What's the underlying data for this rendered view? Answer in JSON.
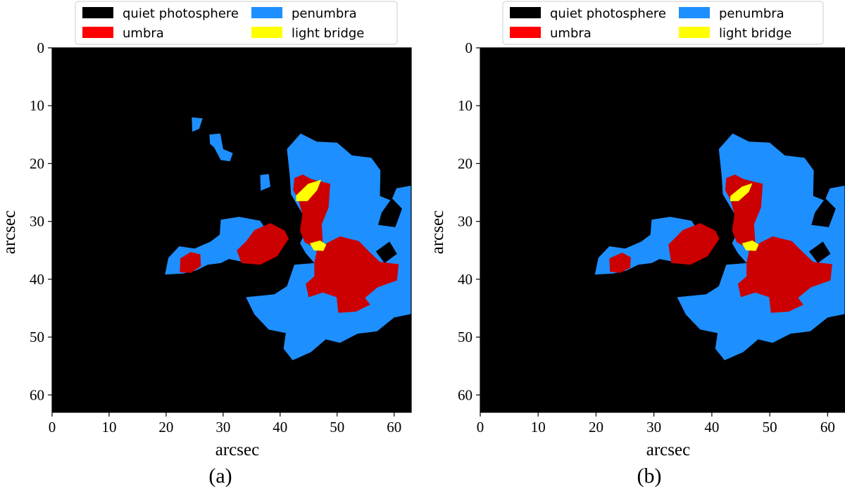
{
  "colors": {
    "quiet": "#000000",
    "umbra": "#ff0000",
    "umbra_fill": "#cc0000",
    "penumbra": "#1e8fff",
    "light_bridge": "#ffff00"
  },
  "chart_data": [
    {
      "type": "heatmap",
      "panel_label": "(a)",
      "xlabel": "arcsec",
      "ylabel": "arcsec",
      "xlim": [
        0,
        63
      ],
      "ylim": [
        63,
        0
      ],
      "xticks": [
        "0",
        "10",
        "20",
        "30",
        "40",
        "50",
        "60"
      ],
      "yticks": [
        "0",
        "10",
        "20",
        "30",
        "40",
        "50",
        "60"
      ],
      "legend_position": "top",
      "legend": [
        {
          "label": "quiet photosphere",
          "color": "#000000"
        },
        {
          "label": "penumbra",
          "color": "#1e8fff"
        },
        {
          "label": "umbra",
          "color": "#ff0000"
        },
        {
          "label": "light bridge",
          "color": "#ffff00"
        }
      ],
      "regions": {
        "penumbra": [
          [
            [
              24.5,
              12
            ],
            [
              26.4,
              12.2
            ],
            [
              25.8,
              14
            ],
            [
              24.6,
              14.5
            ]
          ],
          [
            [
              27.6,
              15
            ],
            [
              29.5,
              14.8
            ],
            [
              30,
              17.5
            ],
            [
              31.7,
              18.2
            ],
            [
              31.2,
              19.6
            ],
            [
              29.6,
              19.4
            ],
            [
              28.4,
              17.2
            ],
            [
              27.7,
              16.6
            ]
          ],
          [
            [
              36.5,
              22
            ],
            [
              38,
              21.8
            ],
            [
              38.3,
              24
            ],
            [
              36.6,
              24.7
            ]
          ],
          [
            [
              41.2,
              17.5
            ],
            [
              43.6,
              14.8
            ],
            [
              46.4,
              16.2
            ],
            [
              50,
              16.4
            ],
            [
              52.6,
              18.6
            ],
            [
              56,
              19
            ],
            [
              57.6,
              21.2
            ],
            [
              57.5,
              25.6
            ],
            [
              59.5,
              26.4
            ],
            [
              60.4,
              24.3
            ],
            [
              63,
              23.8
            ],
            [
              63,
              46
            ],
            [
              60,
              46.6
            ],
            [
              57,
              49
            ],
            [
              53.6,
              49.4
            ],
            [
              50.5,
              51
            ],
            [
              48,
              50.4
            ],
            [
              45.4,
              52.6
            ],
            [
              42.2,
              54
            ],
            [
              40.6,
              52
            ],
            [
              41,
              49.3
            ],
            [
              38,
              48.7
            ],
            [
              35.5,
              46.1
            ],
            [
              34,
              43.1
            ],
            [
              39,
              42.6
            ],
            [
              41.2,
              41.2
            ],
            [
              42.5,
              37.5
            ],
            [
              46,
              37.2
            ],
            [
              44.5,
              35.5
            ],
            [
              43.5,
              33.8
            ],
            [
              45,
              30.5
            ],
            [
              43.2,
              27.5
            ],
            [
              41.9,
              25.3
            ],
            [
              41.7,
              22.2
            ]
          ],
          [
            [
              29.6,
              29.7
            ],
            [
              32.8,
              29.2
            ],
            [
              36.5,
              29.9
            ],
            [
              38.5,
              33
            ],
            [
              37.5,
              36.4
            ],
            [
              33.5,
              37
            ],
            [
              31,
              36.5
            ],
            [
              29.6,
              37.2
            ],
            [
              27.3,
              37.5
            ],
            [
              25.2,
              38.5
            ],
            [
              23,
              39
            ],
            [
              19.8,
              39.2
            ],
            [
              20.4,
              36.3
            ],
            [
              22.3,
              34.3
            ],
            [
              25,
              34.7
            ],
            [
              27.8,
              33.5
            ],
            [
              29.4,
              32.3
            ]
          ]
        ],
        "quiet_cutouts": [
          [
            [
              57.8,
              28.5
            ],
            [
              59.6,
              26
            ],
            [
              61.4,
              27.8
            ],
            [
              60.2,
              31
            ],
            [
              57.2,
              30.6
            ]
          ],
          [
            [
              56.8,
              35.2
            ],
            [
              59.2,
              33.5
            ],
            [
              60.5,
              35.6
            ],
            [
              58.3,
              37.2
            ]
          ]
        ],
        "umbra": [
          [
            [
              42.5,
              22.5
            ],
            [
              44,
              21.9
            ],
            [
              45.5,
              22.7
            ],
            [
              48.8,
              23.5
            ],
            [
              48.5,
              27.6
            ],
            [
              47.3,
              30.5
            ],
            [
              47.5,
              33.7
            ],
            [
              46.1,
              34.6
            ],
            [
              44.3,
              33.6
            ],
            [
              43.5,
              31.6
            ],
            [
              43.9,
              28.8
            ],
            [
              43.2,
              26.2
            ],
            [
              42.3,
              24.6
            ]
          ],
          [
            [
              46.5,
              34.8
            ],
            [
              48.5,
              33.6
            ],
            [
              50.5,
              32.6
            ],
            [
              53.8,
              33.4
            ],
            [
              55.7,
              35.3
            ],
            [
              57.5,
              37
            ],
            [
              60.8,
              37.4
            ],
            [
              60.5,
              40.2
            ],
            [
              57.1,
              41.4
            ],
            [
              54.9,
              43.2
            ],
            [
              55.8,
              44.4
            ],
            [
              53.3,
              45.6
            ],
            [
              50.2,
              45.8
            ],
            [
              49.9,
              43.1
            ],
            [
              47.5,
              42.3
            ],
            [
              45,
              43.1
            ],
            [
              44.5,
              40.8
            ],
            [
              46,
              39.5
            ],
            [
              46,
              37.1
            ]
          ],
          [
            [
              34,
              33.5
            ],
            [
              35.5,
              31.5
            ],
            [
              38.3,
              30.3
            ],
            [
              40.8,
              31.6
            ],
            [
              41.5,
              33
            ],
            [
              39.5,
              36
            ],
            [
              36.5,
              37.5
            ],
            [
              33.2,
              37.2
            ],
            [
              32.4,
              35
            ]
          ],
          [
            [
              22.5,
              36.4
            ],
            [
              24.3,
              35.3
            ],
            [
              26,
              35.7
            ],
            [
              26.1,
              37.7
            ],
            [
              24.4,
              38.9
            ],
            [
              22.4,
              38.8
            ]
          ]
        ],
        "light_bridge": [
          [
            [
              42.8,
              25.5
            ],
            [
              44.9,
              23.5
            ],
            [
              47.2,
              22.8
            ],
            [
              46.5,
              24.6
            ],
            [
              44.8,
              26.5
            ],
            [
              42.8,
              26.5
            ]
          ],
          [
            [
              45.2,
              33.8
            ],
            [
              47,
              33.3
            ],
            [
              48.1,
              34
            ],
            [
              47.6,
              35.1
            ],
            [
              45.9,
              35
            ]
          ]
        ]
      }
    },
    {
      "type": "heatmap",
      "panel_label": "(b)",
      "xlabel": "arcsec",
      "ylabel": "arcsec",
      "xlim": [
        0,
        63
      ],
      "ylim": [
        63,
        0
      ],
      "xticks": [
        "0",
        "10",
        "20",
        "30",
        "40",
        "50",
        "60"
      ],
      "yticks": [
        "0",
        "10",
        "20",
        "30",
        "40",
        "50",
        "60"
      ],
      "legend_position": "top",
      "legend": [
        {
          "label": "quiet photosphere",
          "color": "#000000"
        },
        {
          "label": "penumbra",
          "color": "#1e8fff"
        },
        {
          "label": "umbra",
          "color": "#ff0000"
        },
        {
          "label": "light bridge",
          "color": "#ffff00"
        }
      ],
      "regions": {
        "penumbra": [
          [
            [
              41.2,
              17.5
            ],
            [
              43.6,
              14.8
            ],
            [
              46.4,
              16.2
            ],
            [
              50,
              16.4
            ],
            [
              52.6,
              18.6
            ],
            [
              56,
              19
            ],
            [
              57.6,
              21.2
            ],
            [
              57.5,
              25.6
            ],
            [
              59.5,
              26.4
            ],
            [
              60.4,
              24.3
            ],
            [
              63,
              23.8
            ],
            [
              63,
              46
            ],
            [
              60,
              46.6
            ],
            [
              57,
              49
            ],
            [
              53.6,
              49.4
            ],
            [
              50.5,
              51
            ],
            [
              48,
              50.4
            ],
            [
              45.4,
              52.6
            ],
            [
              42.2,
              54
            ],
            [
              40.6,
              52
            ],
            [
              41,
              49.3
            ],
            [
              38,
              48.7
            ],
            [
              35.5,
              46.1
            ],
            [
              34,
              43.1
            ],
            [
              39,
              42.6
            ],
            [
              41.2,
              41.2
            ],
            [
              42.5,
              37.5
            ],
            [
              46,
              37.2
            ],
            [
              44.5,
              35.5
            ],
            [
              43.5,
              33.8
            ],
            [
              45,
              30.5
            ],
            [
              43.2,
              27.5
            ],
            [
              41.9,
              25.3
            ],
            [
              41.7,
              22.2
            ]
          ],
          [
            [
              29.6,
              29.7
            ],
            [
              32.8,
              29.2
            ],
            [
              36.5,
              29.9
            ],
            [
              38.5,
              33
            ],
            [
              37.5,
              36.4
            ],
            [
              33.5,
              37
            ],
            [
              31,
              36.5
            ],
            [
              29.6,
              37.2
            ],
            [
              27.3,
              37.5
            ],
            [
              25.2,
              38.5
            ],
            [
              23,
              39
            ],
            [
              19.8,
              39.2
            ],
            [
              20.4,
              36.3
            ],
            [
              22.3,
              34.3
            ],
            [
              25,
              34.7
            ],
            [
              27.8,
              33.5
            ],
            [
              29.4,
              32.3
            ]
          ]
        ],
        "quiet_cutouts": [
          [
            [
              57.8,
              28.5
            ],
            [
              59.6,
              26
            ],
            [
              61.4,
              27.8
            ],
            [
              60.2,
              31
            ],
            [
              57.2,
              30.6
            ]
          ],
          [
            [
              56.8,
              35.2
            ],
            [
              59.2,
              33.5
            ],
            [
              60.5,
              35.6
            ],
            [
              58.3,
              37.2
            ]
          ]
        ],
        "umbra": [
          [
            [
              42.5,
              22.5
            ],
            [
              44,
              21.9
            ],
            [
              45.5,
              22.7
            ],
            [
              48.8,
              23.5
            ],
            [
              48.5,
              27.6
            ],
            [
              47.3,
              30.5
            ],
            [
              47.5,
              33.7
            ],
            [
              46.1,
              34.6
            ],
            [
              44.3,
              33.6
            ],
            [
              43.5,
              31.6
            ],
            [
              43.9,
              28.8
            ],
            [
              43.2,
              26.2
            ],
            [
              42.3,
              24.6
            ]
          ],
          [
            [
              46.5,
              34.8
            ],
            [
              48.5,
              33.6
            ],
            [
              50.5,
              32.6
            ],
            [
              53.8,
              33.4
            ],
            [
              55.7,
              35.3
            ],
            [
              57.5,
              37
            ],
            [
              60.8,
              37.4
            ],
            [
              60.5,
              40.2
            ],
            [
              57.1,
              41.4
            ],
            [
              54.9,
              43.2
            ],
            [
              55.8,
              44.4
            ],
            [
              53.3,
              45.6
            ],
            [
              50.2,
              45.8
            ],
            [
              49.9,
              43.1
            ],
            [
              47.5,
              42.3
            ],
            [
              45,
              43.1
            ],
            [
              44.5,
              40.8
            ],
            [
              46,
              39.5
            ],
            [
              46,
              37.1
            ]
          ],
          [
            [
              32.5,
              34
            ],
            [
              35,
              31.5
            ],
            [
              38,
              30.3
            ],
            [
              40.6,
              31.6
            ],
            [
              41.3,
              33
            ],
            [
              39.3,
              36
            ],
            [
              36.3,
              37.5
            ],
            [
              33,
              37.2
            ]
          ],
          [
            [
              22.3,
              36.4
            ],
            [
              24.5,
              35.4
            ],
            [
              26,
              36.2
            ],
            [
              25.9,
              38
            ],
            [
              24.2,
              38.9
            ],
            [
              22.4,
              38.7
            ]
          ]
        ],
        "light_bridge": [
          [
            [
              43.2,
              25.6
            ],
            [
              45.2,
              24
            ],
            [
              47,
              23.4
            ],
            [
              46.4,
              24.9
            ],
            [
              44.6,
              26.5
            ],
            [
              43.2,
              26.5
            ]
          ],
          [
            [
              45.2,
              33.8
            ],
            [
              47,
              33.3
            ],
            [
              48.1,
              34
            ],
            [
              47.6,
              35.1
            ],
            [
              45.9,
              35
            ]
          ]
        ]
      }
    }
  ]
}
